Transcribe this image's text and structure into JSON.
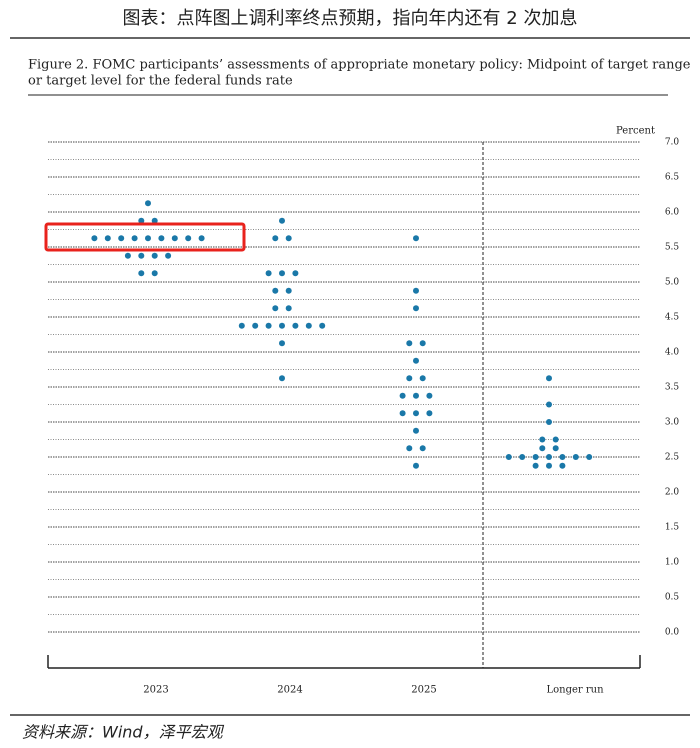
{
  "header": {
    "title": "图表：点阵图上调利率终点预期，指向年内还有 2 次加息"
  },
  "chart_data": {
    "type": "dot",
    "title": "Figure 2.  FOMC participants’ assessments of appropriate monetary policy: Midpoint of target range",
    "subtitle": "or target level for the federal funds rate",
    "y_label": "Percent",
    "categories": [
      "2023",
      "2024",
      "2025",
      "Longer run"
    ],
    "values": [
      [
        6.125,
        5.875,
        5.875,
        5.625,
        5.625,
        5.625,
        5.625,
        5.625,
        5.625,
        5.625,
        5.625,
        5.625,
        5.375,
        5.375,
        5.375,
        5.375,
        5.125,
        5.125
      ],
      [
        5.875,
        5.625,
        5.625,
        5.125,
        5.125,
        5.125,
        4.875,
        4.875,
        4.625,
        4.625,
        4.375,
        4.375,
        4.375,
        4.375,
        4.375,
        4.375,
        4.375,
        4.125,
        3.625
      ],
      [
        5.625,
        4.875,
        4.625,
        4.125,
        4.125,
        3.875,
        3.625,
        3.625,
        3.375,
        3.375,
        3.375,
        3.125,
        3.125,
        3.125,
        2.875,
        2.625,
        2.625,
        2.375
      ],
      [
        3.625,
        3.25,
        3.0,
        2.75,
        2.75,
        2.625,
        2.625,
        2.5,
        2.5,
        2.5,
        2.5,
        2.5,
        2.5,
        2.5,
        2.375,
        2.375,
        2.375
      ]
    ],
    "color": "#1a78a8",
    "ylim": [
      0,
      7
    ],
    "yticks": [
      {
        "value": 0,
        "label": "0.0"
      },
      0.5,
      {
        "value": 1,
        "label": "1.0"
      },
      1.5,
      {
        "value": 2,
        "label": "2.0"
      },
      2.5,
      {
        "value": 3,
        "label": "3.0"
      },
      3.5,
      {
        "value": 4,
        "label": "4.0"
      },
      4.5,
      {
        "value": 5,
        "label": "5.0"
      },
      5.5,
      {
        "value": 6,
        "label": "6.0"
      },
      6.5,
      {
        "value": 7,
        "label": "7.0"
      }
    ],
    "minor_gridlines": [
      0.25,
      0.75,
      1.25,
      1.75,
      2.25,
      2.75,
      3.25,
      3.75,
      4.25,
      4.75,
      5.25,
      5.75,
      6.25,
      6.75
    ],
    "grid": true
  },
  "footer": {
    "source": "资料来源：Wind，泽平宏观"
  }
}
